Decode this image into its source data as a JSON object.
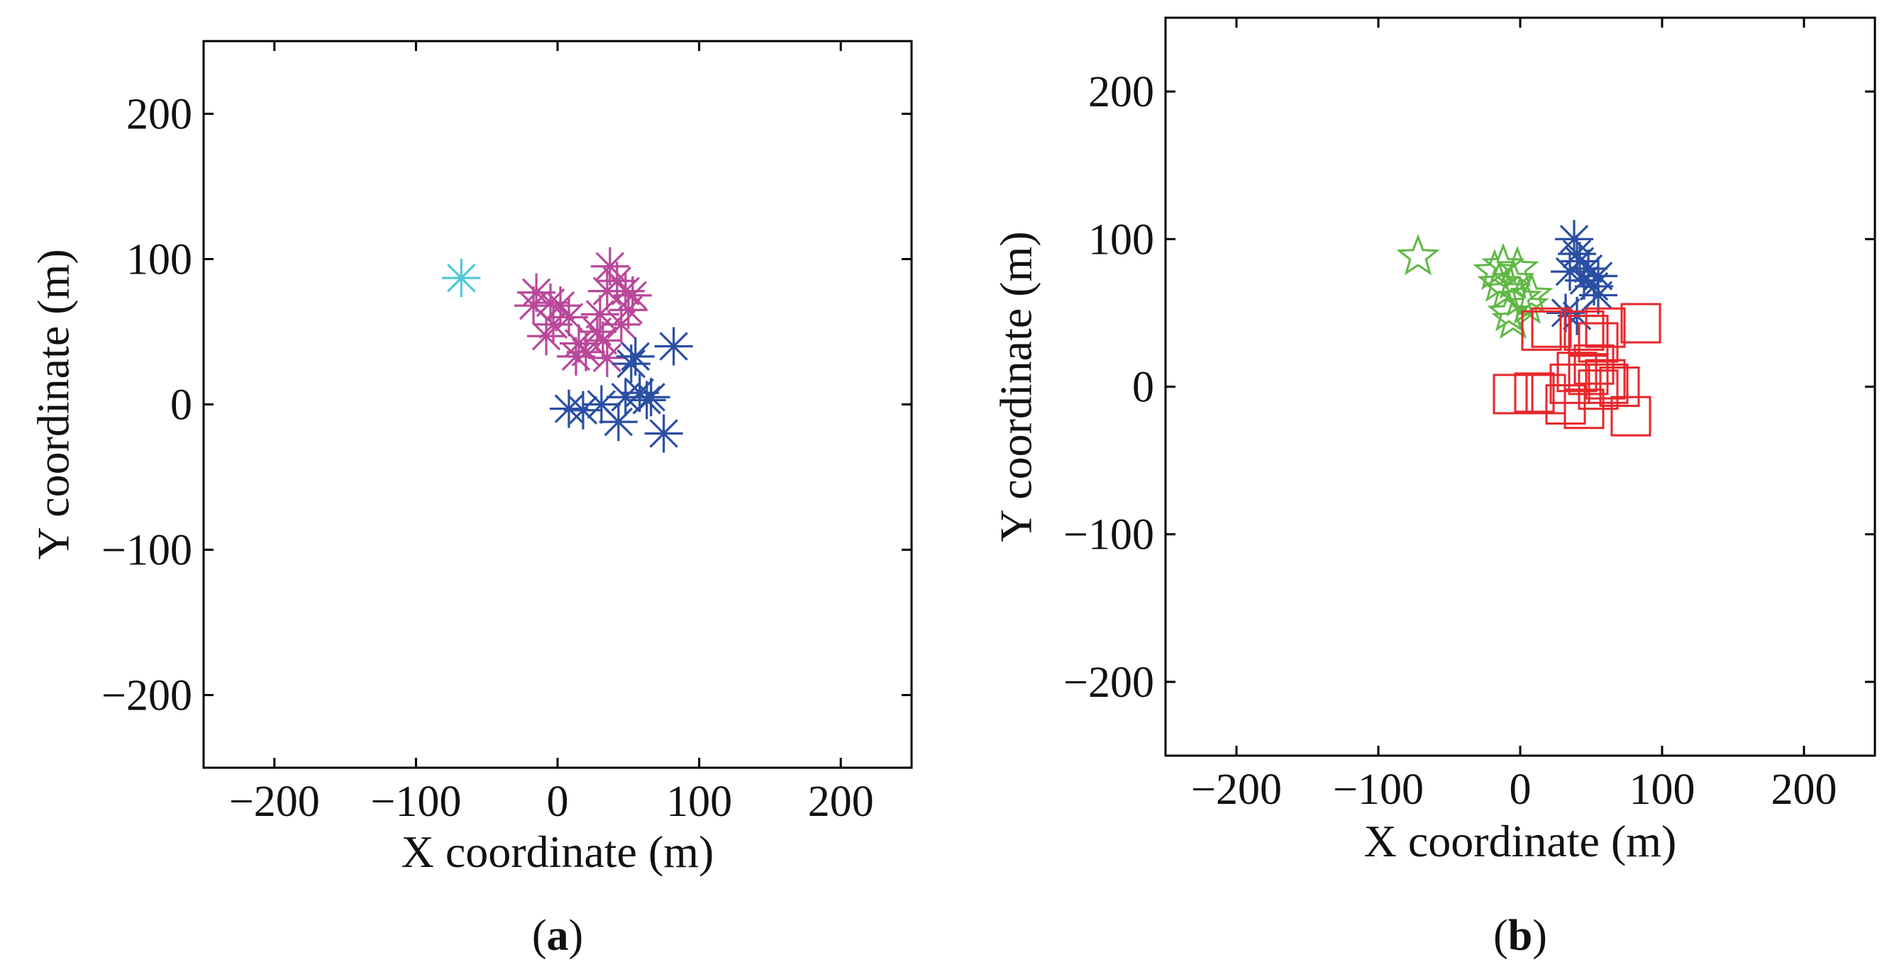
{
  "chart_data": [
    {
      "type": "scatter",
      "caption": "(a)",
      "caption_letter": "a",
      "xlabel": "X coordinate (m)",
      "ylabel": "Y coordinate (m)",
      "xlim": [
        -250,
        250
      ],
      "ylim": [
        -250,
        250
      ],
      "xticks": [
        -200,
        -100,
        0,
        100,
        200
      ],
      "yticks": [
        200,
        100,
        0,
        -100,
        -200
      ],
      "xtick_labels": [
        "−200",
        "−100",
        "0",
        "100",
        "200"
      ],
      "ytick_labels": [
        "200",
        "100",
        "0",
        "−100",
        "−200"
      ],
      "series": [
        {
          "name": "cyan",
          "marker": "asterisk",
          "color": "#4fc9d6",
          "points": [
            [
              -68,
              87
            ]
          ]
        },
        {
          "name": "magenta",
          "marker": "asterisk",
          "color": "#b9479a",
          "points": [
            [
              -15,
              77
            ],
            [
              -17,
              68
            ],
            [
              -5,
              70
            ],
            [
              2,
              68
            ],
            [
              -3,
              55
            ],
            [
              -8,
              47
            ],
            [
              8,
              60
            ],
            [
              15,
              42
            ],
            [
              13,
              33
            ],
            [
              20,
              36
            ],
            [
              28,
              50
            ],
            [
              32,
              44
            ],
            [
              30,
              62
            ],
            [
              35,
              78
            ],
            [
              37,
              95
            ],
            [
              42,
              85
            ],
            [
              48,
              78
            ],
            [
              50,
              65
            ],
            [
              45,
              55
            ],
            [
              53,
              75
            ],
            [
              35,
              32
            ]
          ]
        },
        {
          "name": "blue",
          "marker": "asterisk",
          "color": "#2a4ea3",
          "points": [
            [
              8,
              -3
            ],
            [
              18,
              -4
            ],
            [
              31,
              0
            ],
            [
              43,
              -12
            ],
            [
              48,
              5
            ],
            [
              52,
              28
            ],
            [
              55,
              33
            ],
            [
              58,
              8
            ],
            [
              63,
              3
            ],
            [
              66,
              5
            ],
            [
              75,
              -20
            ],
            [
              82,
              40
            ]
          ]
        }
      ]
    },
    {
      "type": "scatter",
      "caption": "(b)",
      "caption_letter": "b",
      "xlabel": "X coordinate (m)",
      "ylabel": "Y coordinate (m)",
      "xlim": [
        -250,
        250
      ],
      "ylim": [
        -250,
        250
      ],
      "xticks": [
        -200,
        -100,
        0,
        100,
        200
      ],
      "yticks": [
        200,
        100,
        0,
        -100,
        -200
      ],
      "xtick_labels": [
        "−200",
        "−100",
        "0",
        "100",
        "200"
      ],
      "ytick_labels": [
        "200",
        "100",
        "0",
        "−100",
        "−200"
      ],
      "series": [
        {
          "name": "green",
          "marker": "star",
          "color": "#5fb845",
          "points": [
            [
              -72,
              88
            ],
            [
              -18,
              78
            ],
            [
              -12,
              82
            ],
            [
              -15,
              70
            ],
            [
              -10,
              65
            ],
            [
              -5,
              72
            ],
            [
              0,
              60
            ],
            [
              5,
              55
            ],
            [
              -8,
              50
            ],
            [
              -5,
              45
            ],
            [
              8,
              62
            ],
            [
              -2,
              80
            ]
          ]
        },
        {
          "name": "blue",
          "marker": "asterisk",
          "color": "#2a4ea3",
          "points": [
            [
              38,
              100
            ],
            [
              40,
              90
            ],
            [
              35,
              78
            ],
            [
              42,
              85
            ],
            [
              48,
              80
            ],
            [
              52,
              68
            ],
            [
              55,
              62
            ],
            [
              45,
              72
            ],
            [
              32,
              50
            ],
            [
              40,
              48
            ],
            [
              55,
              75
            ]
          ]
        },
        {
          "name": "red",
          "marker": "square",
          "color": "#e8262b",
          "points": [
            [
              15,
              38
            ],
            [
              22,
              40
            ],
            [
              45,
              38
            ],
            [
              48,
              35
            ],
            [
              55,
              30
            ],
            [
              60,
              40
            ],
            [
              85,
              43
            ],
            [
              40,
              10
            ],
            [
              48,
              8
            ],
            [
              52,
              15
            ],
            [
              60,
              5
            ],
            [
              62,
              2
            ],
            [
              70,
              0
            ],
            [
              55,
              -2
            ],
            [
              -5,
              -5
            ],
            [
              10,
              -4
            ],
            [
              18,
              -5
            ],
            [
              32,
              -12
            ],
            [
              45,
              -15
            ],
            [
              78,
              -20
            ],
            [
              35,
              2
            ]
          ]
        }
      ]
    }
  ]
}
